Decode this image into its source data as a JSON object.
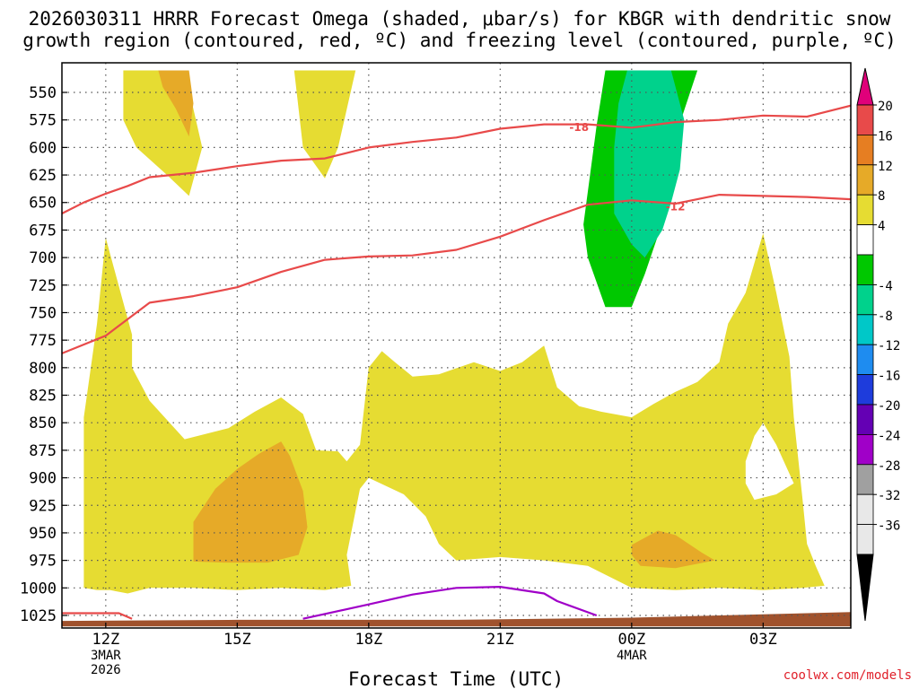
{
  "chart_data": {
    "type": "heatmap",
    "title_line1": "2026030311 HRRR Forecast Omega (shaded, μbar/s) for KBGR with dendritic snow",
    "title_line2": "growth region (contoured, red, ºC) and freezing level (contoured, purple, ºC)",
    "xlabel": "Forecast Time (UTC)",
    "credit": "coolwx.com/models",
    "xlim": [
      11,
      29
    ],
    "ylim_pressure": [
      530,
      1035
    ],
    "y_ticks": [
      550,
      575,
      600,
      625,
      650,
      675,
      700,
      725,
      750,
      775,
      800,
      825,
      850,
      875,
      900,
      925,
      950,
      975,
      1000,
      1025
    ],
    "x_ticks": [
      {
        "hour": 12,
        "label": "12Z",
        "sub1": "3MAR",
        "sub2": "2026"
      },
      {
        "hour": 15,
        "label": "15Z",
        "sub1": "",
        "sub2": ""
      },
      {
        "hour": 18,
        "label": "18Z",
        "sub1": "",
        "sub2": ""
      },
      {
        "hour": 21,
        "label": "21Z",
        "sub1": "",
        "sub2": ""
      },
      {
        "hour": 24,
        "label": "00Z",
        "sub1": "4MAR",
        "sub2": ""
      },
      {
        "hour": 27,
        "label": "03Z",
        "sub1": "",
        "sub2": ""
      }
    ],
    "colorbar": {
      "labels": [
        "20",
        "16",
        "12",
        "8",
        "4",
        "-4",
        "-8",
        "-12",
        "-16",
        "-20",
        "-24",
        "-28",
        "-32",
        "-36"
      ],
      "colors": [
        "#e8e8e8",
        "#a0a0a0",
        "#a000c8",
        "#6400b4",
        "#1e3cdc",
        "#1e8cf0",
        "#00c8c8",
        "#00d28c",
        "#00c800",
        "#ffffff",
        "#e6dc32",
        "#e6aa28",
        "#e67e22",
        "#e84a4a",
        "#e0007a"
      ]
    },
    "shading": [
      {
        "name": "omega-pos-4-8",
        "level": "4 to 8",
        "color": "#e6dc32",
        "polygons": [
          [
            [
              12.4,
              530
            ],
            [
              13.8,
              530
            ],
            [
              14.2,
              600
            ],
            [
              13.9,
              644
            ],
            [
              13.4,
              625
            ],
            [
              12.7,
              600
            ],
            [
              12.4,
              575
            ]
          ],
          [
            [
              16.3,
              530
            ],
            [
              17.7,
              530
            ],
            [
              17.3,
              600
            ],
            [
              17.0,
              628
            ],
            [
              16.5,
              600
            ]
          ],
          [
            [
              11.5,
              1000
            ],
            [
              11.5,
              845
            ],
            [
              11.8,
              760
            ],
            [
              12.0,
              682
            ],
            [
              12.6,
              770
            ],
            [
              12.6,
              800
            ],
            [
              13.0,
              830
            ],
            [
              13.8,
              865
            ],
            [
              14.8,
              855
            ],
            [
              15.4,
              840
            ],
            [
              16.0,
              827
            ],
            [
              16.5,
              842
            ],
            [
              16.8,
              875
            ],
            [
              17.3,
              876
            ],
            [
              17.5,
              885
            ],
            [
              17.8,
              870
            ],
            [
              18.0,
              800
            ],
            [
              18.3,
              785
            ],
            [
              18.6,
              795
            ],
            [
              19.0,
              808
            ],
            [
              19.6,
              806
            ],
            [
              20.4,
              795
            ],
            [
              21.0,
              803
            ],
            [
              21.5,
              795
            ],
            [
              22.0,
              780
            ],
            [
              22.3,
              818
            ],
            [
              22.8,
              835
            ],
            [
              23.3,
              840
            ],
            [
              24.0,
              845
            ],
            [
              24.5,
              833
            ],
            [
              25.0,
              822
            ],
            [
              25.5,
              813
            ],
            [
              26.0,
              795
            ],
            [
              26.2,
              760
            ],
            [
              26.6,
              732
            ],
            [
              27.0,
              678
            ],
            [
              27.3,
              732
            ],
            [
              27.6,
              790
            ],
            [
              27.7,
              845
            ],
            [
              27.9,
              920
            ],
            [
              28.0,
              960
            ],
            [
              28.2,
              980
            ],
            [
              28.4,
              998
            ],
            [
              27.9,
              1000
            ],
            [
              27.0,
              1002
            ],
            [
              26.0,
              1000
            ],
            [
              25.0,
              1002
            ],
            [
              24.0,
              1000
            ],
            [
              23.5,
              990
            ],
            [
              23.0,
              980
            ],
            [
              22.0,
              975
            ],
            [
              21.0,
              972
            ],
            [
              20.0,
              975
            ],
            [
              19.6,
              960
            ],
            [
              19.3,
              935
            ],
            [
              18.8,
              915
            ],
            [
              18.0,
              900
            ],
            [
              17.8,
              910
            ],
            [
              17.5,
              970
            ],
            [
              17.6,
              998
            ],
            [
              17.0,
              1002
            ],
            [
              16.0,
              1000
            ],
            [
              15.0,
              1002
            ],
            [
              14.0,
              1000
            ],
            [
              13.0,
              1000
            ],
            [
              12.5,
              1005
            ],
            [
              12.1,
              1002
            ],
            [
              11.8,
              1002
            ]
          ]
        ]
      },
      {
        "name": "omega-pos-8-12",
        "level": "8 to 12",
        "color": "#e6aa28",
        "polygons": [
          [
            [
              13.2,
              530
            ],
            [
              13.9,
              530
            ],
            [
              14.0,
              560
            ],
            [
              13.9,
              590
            ],
            [
              13.6,
              565
            ],
            [
              13.3,
              545
            ]
          ],
          [
            [
              14.0,
              968
            ],
            [
              14.0,
              940
            ],
            [
              14.5,
              910
            ],
            [
              15.0,
              892
            ],
            [
              15.5,
              878
            ],
            [
              16.0,
              867
            ],
            [
              16.2,
              880
            ],
            [
              16.5,
              912
            ],
            [
              16.6,
              945
            ],
            [
              16.4,
              970
            ],
            [
              15.7,
              977
            ],
            [
              14.7,
              977
            ],
            [
              14.0,
              976
            ]
          ],
          [
            [
              24.0,
              961
            ],
            [
              24.6,
              948
            ],
            [
              25.0,
              952
            ],
            [
              25.6,
              968
            ],
            [
              25.9,
              975
            ],
            [
              25.0,
              982
            ],
            [
              24.2,
              980
            ],
            [
              24.0,
              970
            ]
          ]
        ]
      },
      {
        "name": "omega-hole-white",
        "level": "-4 to 4",
        "color": "#ffffff",
        "polygons": [
          [
            [
              26.6,
              885
            ],
            [
              26.8,
              862
            ],
            [
              27.0,
              850
            ],
            [
              27.3,
              870
            ],
            [
              27.7,
              905
            ],
            [
              27.3,
              915
            ],
            [
              26.8,
              920
            ],
            [
              26.6,
              905
            ]
          ]
        ]
      },
      {
        "name": "omega-neg-4-8",
        "level": "-4 to -8",
        "color": "#00c800",
        "polygons": [
          [
            [
              23.4,
              530
            ],
            [
              25.5,
              530
            ],
            [
              25.0,
              590
            ],
            [
              24.6,
              680
            ],
            [
              24.3,
              715
            ],
            [
              24.0,
              745
            ],
            [
              23.4,
              745
            ],
            [
              23.0,
              700
            ],
            [
              22.9,
              670
            ],
            [
              23.0,
              640
            ],
            [
              23.2,
              580
            ]
          ]
        ]
      },
      {
        "name": "omega-neg-8-12",
        "level": "-8 to -12",
        "color": "#00d28c",
        "polygons": [
          [
            [
              23.9,
              530
            ],
            [
              24.9,
              530
            ],
            [
              25.2,
              575
            ],
            [
              25.1,
              620
            ],
            [
              24.9,
              650
            ],
            [
              24.7,
              675
            ],
            [
              24.3,
              700
            ],
            [
              24.0,
              688
            ],
            [
              23.6,
              660
            ],
            [
              23.6,
              600
            ],
            [
              23.7,
              560
            ]
          ]
        ]
      }
    ],
    "dendritic_contours": [
      {
        "name": "isotherm--18",
        "label": "-18",
        "color": "#e84a4a",
        "label_at": [
          22.8,
          581
        ],
        "points": [
          [
            11,
            660
          ],
          [
            11.5,
            650
          ],
          [
            12.0,
            642
          ],
          [
            12.5,
            635
          ],
          [
            13.0,
            627
          ],
          [
            14.0,
            623
          ],
          [
            15.0,
            617
          ],
          [
            16.0,
            612
          ],
          [
            17.0,
            610
          ],
          [
            18.0,
            600
          ],
          [
            19.0,
            595
          ],
          [
            20.0,
            591
          ],
          [
            21.0,
            583
          ],
          [
            22.0,
            579
          ],
          [
            23.0,
            579
          ],
          [
            24.0,
            582
          ],
          [
            25.0,
            577
          ],
          [
            26.0,
            575
          ],
          [
            27.0,
            571
          ],
          [
            28.0,
            572
          ],
          [
            29,
            562
          ]
        ]
      },
      {
        "name": "isotherm--12",
        "label": "-12",
        "color": "#e84a4a",
        "label_at": [
          25.0,
          653
        ],
        "points": [
          [
            11,
            787
          ],
          [
            12.0,
            771
          ],
          [
            13.0,
            741
          ],
          [
            14.0,
            735
          ],
          [
            15.0,
            727
          ],
          [
            16.0,
            713
          ],
          [
            17.0,
            702
          ],
          [
            18.0,
            699
          ],
          [
            19.0,
            698
          ],
          [
            20.0,
            693
          ],
          [
            21.0,
            681
          ],
          [
            22.0,
            666
          ],
          [
            23.0,
            652
          ],
          [
            24.0,
            648
          ],
          [
            25.0,
            651
          ],
          [
            26.0,
            643
          ],
          [
            27.0,
            644
          ],
          [
            28.0,
            645
          ],
          [
            29,
            647
          ]
        ]
      },
      {
        "name": "isotherm-low",
        "label": "",
        "color": "#e84a4a",
        "label_at": null,
        "points": [
          [
            11,
            1023
          ],
          [
            12.3,
            1023
          ],
          [
            12.6,
            1028
          ]
        ]
      }
    ],
    "freezing_contours": [
      {
        "name": "freezing-level-0",
        "color": "#a000c8",
        "points": [
          [
            16.5,
            1028
          ],
          [
            18.0,
            1015
          ],
          [
            19.0,
            1006
          ],
          [
            20.0,
            1000
          ],
          [
            21.0,
            999
          ],
          [
            22.0,
            1005
          ],
          [
            22.3,
            1012
          ],
          [
            23.2,
            1025
          ]
        ]
      }
    ],
    "terrain": {
      "name": "terrain",
      "color": "#a0522d",
      "points": [
        [
          11,
          1035
        ],
        [
          11,
          1030
        ],
        [
          15.0,
          1029
        ],
        [
          20.0,
          1029
        ],
        [
          24.0,
          1027
        ],
        [
          26.0,
          1025
        ],
        [
          29,
          1022
        ],
        [
          29,
          1035
        ]
      ]
    }
  }
}
